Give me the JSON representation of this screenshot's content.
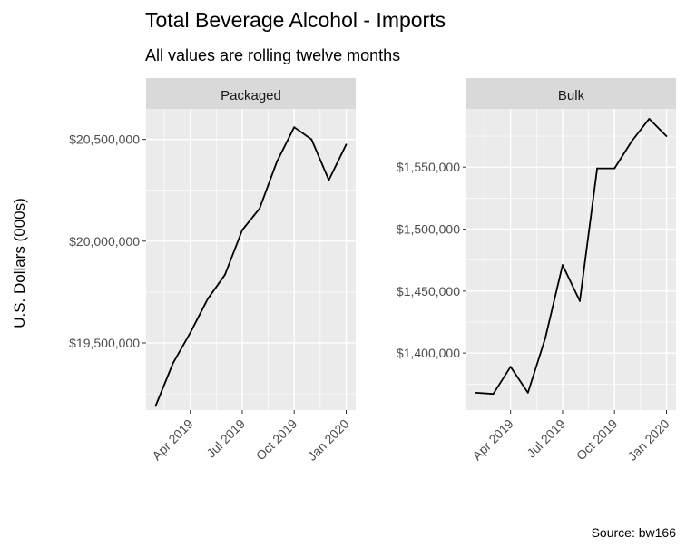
{
  "chart_data": {
    "type": "line",
    "title": "Total Beverage Alcohol - Imports",
    "subtitle": "All values are rolling twelve months",
    "ylabel": "U.S. Dollars (000s)",
    "caption": "Source: bw166",
    "x": [
      "2019-02",
      "2019-03",
      "2019-04",
      "2019-05",
      "2019-06",
      "2019-07",
      "2019-08",
      "2019-09",
      "2019-10",
      "2019-11",
      "2019-12",
      "2020-01"
    ],
    "x_ticks": [
      {
        "date": "2019-04",
        "label": "Apr 2019"
      },
      {
        "date": "2019-07",
        "label": "Jul 2019"
      },
      {
        "date": "2019-10",
        "label": "Oct 2019"
      },
      {
        "date": "2020-01",
        "label": "Jan 2020"
      }
    ],
    "panels": [
      {
        "name": "Packaged",
        "values": [
          19190000,
          19400000,
          19550000,
          19715000,
          19835000,
          20055000,
          20160000,
          20390000,
          20560000,
          20500000,
          20300000,
          20475000
        ],
        "ylim": [
          19170000,
          20650000
        ],
        "y_ticks": [
          {
            "value": 19500000,
            "label": "$19,500,000"
          },
          {
            "value": 20000000,
            "label": "$20,000,000"
          },
          {
            "value": 20500000,
            "label": "$20,500,000"
          }
        ]
      },
      {
        "name": "Bulk",
        "values": [
          1368000,
          1367000,
          1389000,
          1368000,
          1412000,
          1471000,
          1442000,
          1549000,
          1549000,
          1571000,
          1589000,
          1575000
        ],
        "ylim": [
          1354000,
          1597000
        ],
        "y_ticks": [
          {
            "value": 1400000,
            "label": "$1,400,000"
          },
          {
            "value": 1450000,
            "label": "$1,450,000"
          },
          {
            "value": 1500000,
            "label": "$1,500,000"
          },
          {
            "value": 1550000,
            "label": "$1,550,000"
          }
        ]
      }
    ],
    "grid": true,
    "colors": {
      "line": "#000000",
      "panel_bg": "#ebebeb",
      "strip_bg": "#d9d9d9",
      "grid": "#ffffff",
      "tick_text": "#4d4d4d"
    }
  }
}
